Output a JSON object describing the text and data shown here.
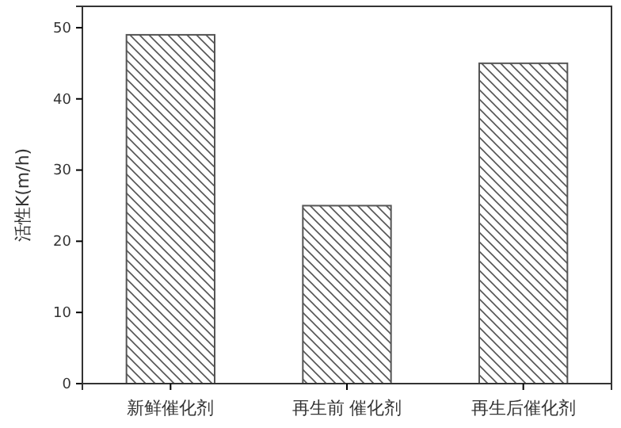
{
  "chart_data": {
    "type": "bar",
    "ylabel": "活性K(m/h)",
    "categories": [
      "新鲜催化剂",
      "再生前 催化剂",
      "再生后催化剂"
    ],
    "values": [
      49,
      25,
      45
    ],
    "color": "#555555",
    "ylim": [
      0,
      53
    ],
    "yticks": [
      0,
      10,
      20,
      30,
      40,
      50
    ],
    "grid": false
  }
}
